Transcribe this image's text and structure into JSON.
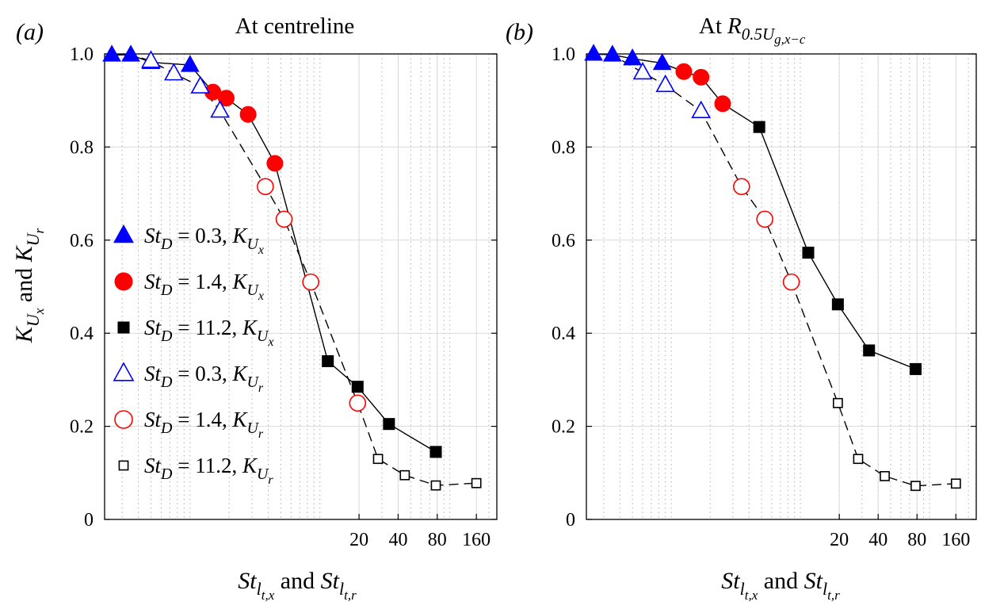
{
  "figure": {
    "ylabel": {
      "main1": "K",
      "sub1a": "U",
      "sub1b": "x",
      "mid": " and ",
      "main2": "K",
      "sub2a": "U",
      "sub2b": "r"
    },
    "xlabel": {
      "main1": "St",
      "sub1": "l",
      "subsub1": "t,x",
      "mid": " and ",
      "main2": "St",
      "sub2": "l",
      "subsub2": "t,r"
    }
  },
  "legend": [
    {
      "series": "StD=0.3 KUx",
      "marker": "triangle",
      "filled": true,
      "color": "#0000ff",
      "st": "St",
      "st_sub": "D",
      "eq": " = 0.3, ",
      "k": "K",
      "k_sub": "U",
      "k_subsub": "x"
    },
    {
      "series": "StD=1.4 KUx",
      "marker": "circle",
      "filled": true,
      "color": "#ff0000",
      "st": "St",
      "st_sub": "D",
      "eq": " = 1.4, ",
      "k": "K",
      "k_sub": "U",
      "k_subsub": "x"
    },
    {
      "series": "StD=11.2 KUx",
      "marker": "square",
      "filled": true,
      "color": "#000000",
      "st": "St",
      "st_sub": "D",
      "eq": " = 11.2, ",
      "k": "K",
      "k_sub": "U",
      "k_subsub": "x"
    },
    {
      "series": "StD=0.3 KUr",
      "marker": "triangle",
      "filled": false,
      "color": "#0000ff",
      "st": "St",
      "st_sub": "D",
      "eq": " = 0.3, ",
      "k": "K",
      "k_sub": "U",
      "k_subsub": "r"
    },
    {
      "series": "StD=1.4 KUr",
      "marker": "circle",
      "filled": false,
      "color": "#ff0000",
      "st": "St",
      "st_sub": "D",
      "eq": " = 1.4, ",
      "k": "K",
      "k_sub": "U",
      "k_subsub": "r"
    },
    {
      "series": "StD=11.2 KUr",
      "marker": "square",
      "filled": false,
      "color": "#000000",
      "st": "St",
      "st_sub": "D",
      "eq": " = 11.2, ",
      "k": "K",
      "k_sub": "U",
      "k_subsub": "r"
    }
  ],
  "chart_data": [
    {
      "type": "line",
      "panel_letter": "(a)",
      "title": "At centreline",
      "x_scale": "log",
      "xlim": [
        0.22,
        230
      ],
      "ylim": [
        0,
        1.0
      ],
      "xticks": [
        20,
        40,
        80,
        160
      ],
      "xtick_labels": [
        "20",
        "40",
        "80",
        "160"
      ],
      "yticks": [
        0,
        0.2,
        0.4,
        0.6,
        0.8,
        1.0
      ],
      "ytick_labels": [
        "0",
        "0.2",
        "0.4",
        "0.6",
        "0.8",
        "1.0"
      ],
      "grid": true,
      "legend_position": "left",
      "series": [
        {
          "name": "StD=0.3 KUx",
          "color": "#0000ff",
          "marker": "triangle",
          "filled": true,
          "line": "solid",
          "x": [
            0.25,
            0.35,
            0.5,
            1.0
          ],
          "y": [
            0.998,
            0.998,
            0.982,
            0.976
          ]
        },
        {
          "name": "StD=1.4 KUx",
          "color": "#ff0000",
          "marker": "circle",
          "filled": true,
          "line": "solid",
          "x": [
            1.5,
            1.9,
            2.8,
            4.5
          ],
          "y": [
            0.918,
            0.905,
            0.87,
            0.765
          ]
        },
        {
          "name": "StD=11.2 KUx",
          "color": "#000000",
          "marker": "square",
          "filled": true,
          "line": "solid",
          "x": [
            11.5,
            19.5,
            34,
            78
          ],
          "y": [
            0.34,
            0.285,
            0.205,
            0.145
          ]
        },
        {
          "name": "StD=0.3 KUr",
          "color": "#0000ff",
          "marker": "triangle",
          "filled": false,
          "line": "dashed",
          "x": [
            0.5,
            0.75,
            1.2,
            1.7
          ],
          "y": [
            0.985,
            0.958,
            0.93,
            0.878
          ]
        },
        {
          "name": "StD=1.4 KUr",
          "color": "#ff0000",
          "marker": "circle",
          "filled": false,
          "line": "dashed",
          "x": [
            3.8,
            5.3,
            8.5,
            19.5
          ],
          "y": [
            0.715,
            0.645,
            0.51,
            0.25
          ]
        },
        {
          "name": "StD=11.2 KUr",
          "color": "#000000",
          "marker": "square",
          "filled": false,
          "line": "dashed",
          "x": [
            28,
            45,
            78,
            160
          ],
          "y": [
            0.13,
            0.095,
            0.073,
            0.078
          ]
        }
      ],
      "lines": [
        {
          "style": "solid",
          "x": [
            0.25,
            0.35,
            0.5,
            1.0,
            1.5,
            1.9,
            2.8,
            4.5,
            11.5,
            19.5,
            34,
            78
          ],
          "y": [
            0.998,
            0.998,
            0.982,
            0.976,
            0.918,
            0.905,
            0.87,
            0.765,
            0.34,
            0.285,
            0.205,
            0.145
          ]
        },
        {
          "style": "dashed",
          "x": [
            0.25,
            0.35,
            0.5,
            0.75,
            1.2,
            1.7,
            3.8,
            5.3,
            8.5,
            19.5,
            28,
            45,
            78,
            160
          ],
          "y": [
            0.998,
            0.998,
            0.985,
            0.958,
            0.93,
            0.878,
            0.715,
            0.645,
            0.51,
            0.25,
            0.13,
            0.095,
            0.073,
            0.078
          ]
        }
      ]
    },
    {
      "type": "line",
      "panel_letter": "(b)",
      "title": "At",
      "title_math": {
        "main": "R",
        "sub": "0.5",
        "subsub_a": "U",
        "subsub_b": "g,x−c"
      },
      "x_scale": "log",
      "xlim": [
        0.22,
        230
      ],
      "ylim": [
        0,
        1.0
      ],
      "xticks": [
        20,
        40,
        80,
        160
      ],
      "xtick_labels": [
        "20",
        "40",
        "80",
        "160"
      ],
      "yticks": [
        0,
        0.2,
        0.4,
        0.6,
        0.8,
        1.0
      ],
      "ytick_labels": [
        "0",
        "0.2",
        "0.4",
        "0.6",
        "0.8",
        "1.0"
      ],
      "grid": true,
      "series": [
        {
          "name": "StD=0.3 KUx",
          "color": "#0000ff",
          "marker": "triangle",
          "filled": true,
          "line": "solid",
          "x": [
            0.25,
            0.35,
            0.5,
            0.85
          ],
          "y": [
            1.0,
            0.998,
            0.99,
            0.98
          ]
        },
        {
          "name": "StD=1.4 KUx",
          "color": "#ff0000",
          "marker": "circle",
          "filled": true,
          "line": "solid",
          "x": [
            1.25,
            1.7,
            2.5
          ],
          "y": [
            0.962,
            0.95,
            0.893
          ]
        },
        {
          "name": "StD=11.2 KUx",
          "color": "#000000",
          "marker": "square",
          "filled": true,
          "line": "solid",
          "x": [
            4.8,
            11.5,
            19.5,
            34,
            78
          ],
          "y": [
            0.843,
            0.573,
            0.462,
            0.363,
            0.323
          ]
        },
        {
          "name": "StD=0.3 KUr",
          "color": "#0000ff",
          "marker": "triangle",
          "filled": false,
          "line": "dashed",
          "x": [
            0.6,
            0.9,
            1.7
          ],
          "y": [
            0.96,
            0.933,
            0.877
          ]
        },
        {
          "name": "StD=1.4 KUr",
          "color": "#ff0000",
          "marker": "circle",
          "filled": false,
          "line": "dashed",
          "x": [
            3.5,
            5.3,
            8.5
          ],
          "y": [
            0.715,
            0.645,
            0.51
          ]
        },
        {
          "name": "StD=11.2 KUr",
          "color": "#000000",
          "marker": "square",
          "filled": false,
          "line": "dashed",
          "x": [
            19.5,
            28,
            45,
            78,
            160
          ],
          "y": [
            0.25,
            0.13,
            0.093,
            0.072,
            0.077
          ]
        }
      ],
      "lines": [
        {
          "style": "solid",
          "x": [
            0.25,
            0.35,
            0.5,
            0.85,
            1.25,
            1.7,
            2.5,
            4.8,
            11.5,
            19.5,
            34,
            78
          ],
          "y": [
            1.0,
            0.998,
            0.99,
            0.98,
            0.962,
            0.95,
            0.893,
            0.843,
            0.573,
            0.462,
            0.363,
            0.323
          ]
        },
        {
          "style": "dashed",
          "x": [
            0.25,
            0.35,
            0.6,
            0.9,
            1.7,
            3.5,
            5.3,
            8.5,
            19.5,
            28,
            45,
            78,
            160
          ],
          "y": [
            1.0,
            0.998,
            0.96,
            0.933,
            0.877,
            0.715,
            0.645,
            0.51,
            0.25,
            0.13,
            0.093,
            0.072,
            0.077
          ]
        }
      ]
    }
  ]
}
